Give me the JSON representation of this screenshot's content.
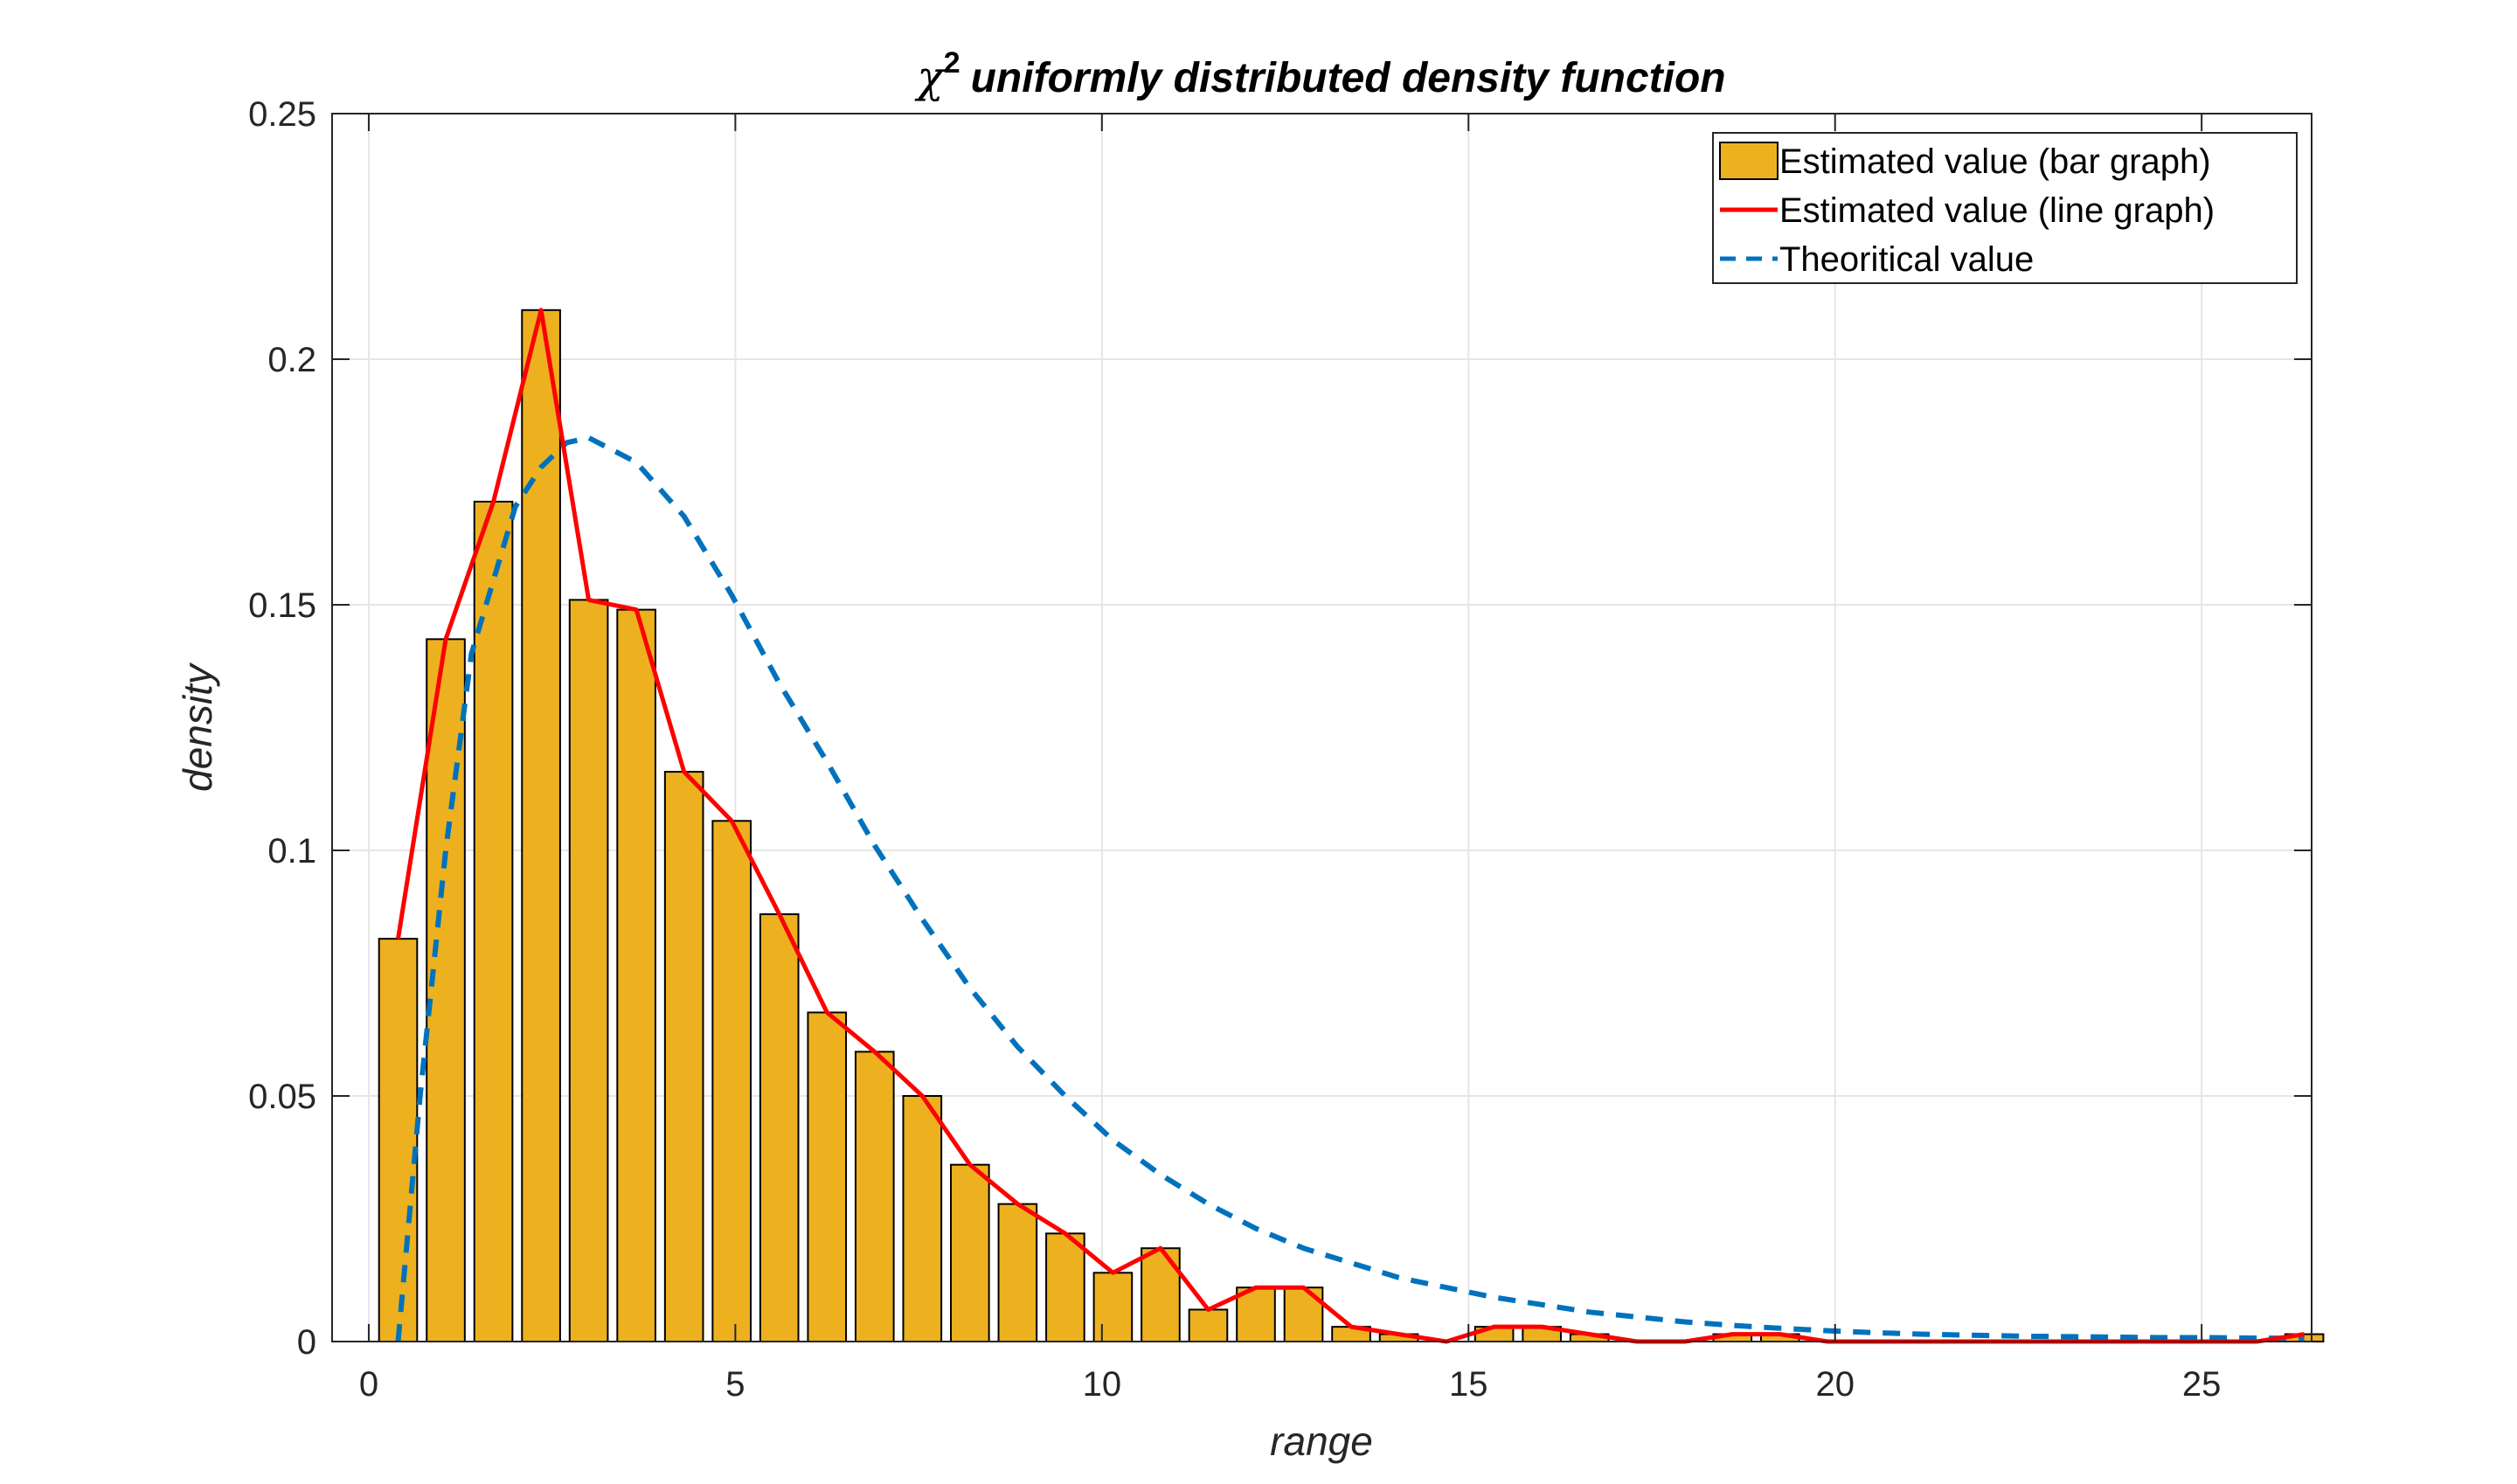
{
  "colors": {
    "bar_fill": "#EDB120",
    "bar_edge": "#000000",
    "estimated_line": "#FF0000",
    "theoretical_line": "#0072BD",
    "grid": "#E6E6E6",
    "axis": "#262626"
  },
  "chart_data": {
    "type": "bar",
    "title_symbol": "χ",
    "title_superscript": "2",
    "title": "uniformly distributed density function",
    "xlabel": "range",
    "ylabel": "density",
    "xlim": [
      -0.5,
      26.5
    ],
    "ylim": [
      0,
      0.25
    ],
    "grid": true,
    "legend_position": "top-right",
    "x_ticks": [
      0,
      5,
      10,
      15,
      20,
      25
    ],
    "y_ticks": [
      0,
      0.05,
      0.1,
      0.15,
      0.2,
      0.25
    ],
    "y_tick_labels": [
      "0",
      "0.05",
      "0.1",
      "0.15",
      "0.2",
      "0.25"
    ],
    "series": [
      {
        "name": "Estimated value (bar graph)",
        "kind": "bar",
        "x": [
          0.4,
          1.05,
          1.7,
          2.35,
          3.0,
          3.65,
          4.3,
          4.95,
          5.6,
          6.25,
          6.9,
          7.55,
          8.2,
          8.85,
          9.5,
          10.15,
          10.8,
          11.45,
          12.1,
          12.75,
          13.4,
          14.05,
          14.7,
          15.35,
          16.0,
          16.65,
          17.3,
          17.95,
          18.6,
          19.25,
          19.9,
          20.55,
          21.2,
          21.85,
          22.5,
          23.15,
          23.8,
          24.45,
          25.1,
          25.75,
          26.4
        ],
        "values": [
          0.082,
          0.143,
          0.171,
          0.21,
          0.151,
          0.149,
          0.116,
          0.106,
          0.087,
          0.067,
          0.059,
          0.05,
          0.036,
          0.028,
          0.022,
          0.014,
          0.019,
          0.0065,
          0.011,
          0.011,
          0.003,
          0.0015,
          0.0,
          0.003,
          0.003,
          0.0015,
          0.0,
          0.0,
          0.0015,
          0.0015,
          0.0,
          0.0,
          0.0,
          0.0,
          0.0,
          0.0,
          0.0,
          0.0,
          0.0,
          0.0,
          0.0015
        ]
      },
      {
        "name": "Estimated value (line graph)",
        "kind": "line",
        "x": [
          0.4,
          1.05,
          1.7,
          2.35,
          3.0,
          3.65,
          4.3,
          4.95,
          5.6,
          6.25,
          6.9,
          7.55,
          8.2,
          8.85,
          9.5,
          10.15,
          10.8,
          11.45,
          12.1,
          12.75,
          13.4,
          14.05,
          14.7,
          15.35,
          16.0,
          16.65,
          17.3,
          17.95,
          18.6,
          19.25,
          19.9,
          20.55,
          21.2,
          21.85,
          22.5,
          23.15,
          23.8,
          24.45,
          25.1,
          25.75,
          26.4
        ],
        "values": [
          0.082,
          0.143,
          0.171,
          0.21,
          0.151,
          0.149,
          0.116,
          0.106,
          0.087,
          0.067,
          0.059,
          0.05,
          0.036,
          0.028,
          0.022,
          0.014,
          0.019,
          0.0065,
          0.011,
          0.011,
          0.003,
          0.0015,
          0.0,
          0.003,
          0.003,
          0.0015,
          0.0,
          0.0,
          0.0015,
          0.0015,
          0.0,
          0.0,
          0.0,
          0.0,
          0.0,
          0.0,
          0.0,
          0.0,
          0.0,
          0.0,
          0.0015
        ]
      },
      {
        "name": "Theoritical value",
        "kind": "dashed-line",
        "x": [
          0.4,
          0.7,
          1.05,
          1.4,
          1.7,
          2.0,
          2.35,
          2.7,
          3.0,
          3.65,
          4.3,
          4.95,
          5.6,
          6.25,
          6.9,
          7.55,
          8.2,
          8.85,
          9.5,
          10.15,
          10.8,
          11.45,
          12.1,
          12.75,
          13.4,
          14.05,
          14.7,
          15.35,
          16.0,
          16.65,
          17.3,
          17.95,
          18.6,
          19.25,
          19.9,
          20.55,
          21.2,
          21.85,
          22.5,
          23.15,
          23.8,
          24.45,
          25.1,
          25.75,
          26.4
        ],
        "values": [
          0.0,
          0.05,
          0.1,
          0.14,
          0.155,
          0.17,
          0.178,
          0.183,
          0.184,
          0.179,
          0.168,
          0.152,
          0.134,
          0.118,
          0.101,
          0.086,
          0.072,
          0.06,
          0.05,
          0.041,
          0.034,
          0.028,
          0.023,
          0.019,
          0.016,
          0.013,
          0.011,
          0.009,
          0.0075,
          0.006,
          0.005,
          0.004,
          0.0033,
          0.0027,
          0.0022,
          0.0018,
          0.0015,
          0.0013,
          0.0011,
          0.001,
          0.0009,
          0.0008,
          0.0008,
          0.0007,
          0.0007
        ]
      }
    ]
  }
}
